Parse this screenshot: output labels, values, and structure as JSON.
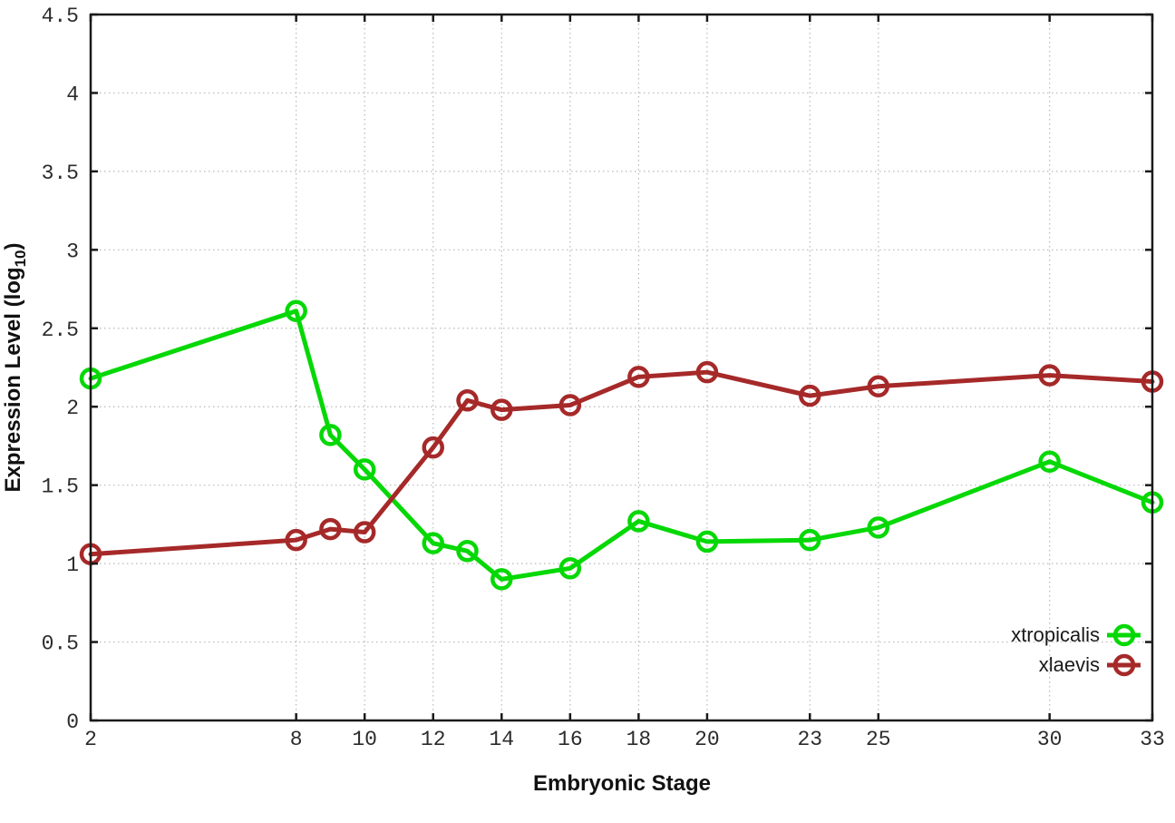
{
  "figure": {
    "background": "#ffffff"
  },
  "chart_data": {
    "type": "line",
    "title": "",
    "xlabel": "Embryonic Stage",
    "ylabel": "Expression Level (log10)",
    "ylabel_prefix": "Expression Level (log",
    "ylabel_sub": "10",
    "ylabel_suffix": ")",
    "xlim": [
      2,
      33
    ],
    "ylim": [
      0,
      4.5
    ],
    "grid": "dotted",
    "legend_position": "inside-bottom-right",
    "marker": "open-circle",
    "xticks": {
      "values": [
        2,
        8,
        10,
        12,
        14,
        16,
        18,
        20,
        23,
        25,
        30,
        33
      ],
      "labels": [
        "2",
        "8",
        "10",
        "12",
        "14",
        "16",
        "18",
        "20",
        "23",
        "25",
        "30",
        "33"
      ]
    },
    "yticks": {
      "values": [
        0,
        0.5,
        1,
        1.5,
        2,
        2.5,
        3,
        3.5,
        4,
        4.5
      ],
      "labels": [
        "0",
        "0.5",
        "1",
        "1.5",
        "2",
        "2.5",
        "3",
        "3.5",
        "4",
        "4.5"
      ]
    },
    "x": [
      2,
      8,
      9,
      10,
      12,
      13,
      14,
      16,
      18,
      20,
      23,
      25,
      30,
      33
    ],
    "series": [
      {
        "name": "xtropicalis",
        "color": "#06d806",
        "values": [
          2.18,
          2.61,
          1.82,
          1.6,
          1.13,
          1.08,
          0.9,
          0.97,
          1.27,
          1.14,
          1.15,
          1.23,
          1.65,
          1.39
        ]
      },
      {
        "name": "xlaevis",
        "color": "#a62929",
        "values": [
          1.06,
          1.15,
          1.22,
          1.2,
          1.74,
          2.04,
          1.98,
          2.01,
          2.19,
          2.22,
          2.07,
          2.13,
          2.2,
          2.16
        ]
      }
    ]
  }
}
